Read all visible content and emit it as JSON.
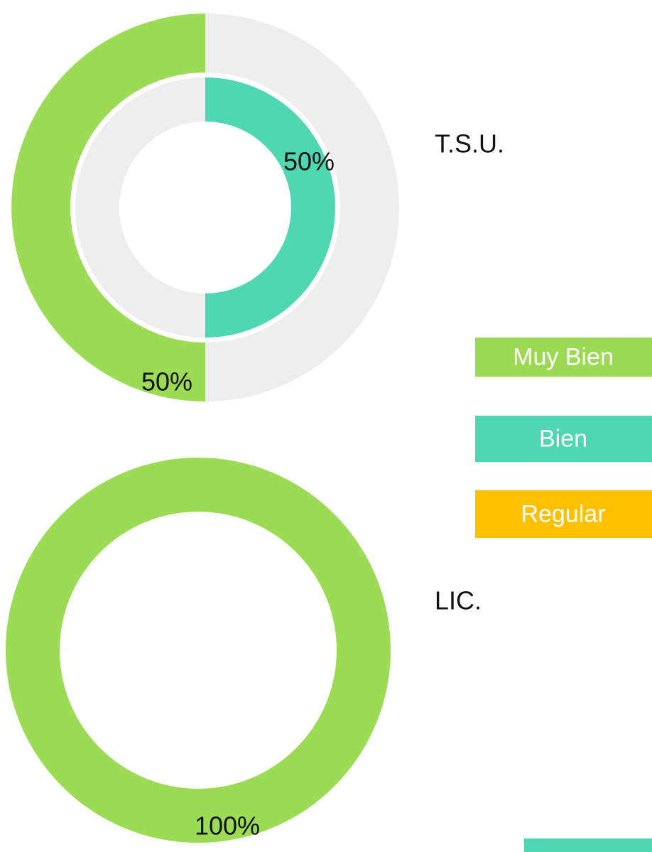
{
  "chart_data": [
    {
      "type": "donut",
      "label": "T.S.U.",
      "track_color": "#eeeeee",
      "series": [
        {
          "color": "#9cdc55",
          "values": [
            50
          ],
          "value_labels": [
            "50%"
          ]
        },
        {
          "color": "#4fd7b2",
          "values": [
            50
          ],
          "value_labels": [
            "50%"
          ]
        }
      ]
    },
    {
      "type": "donut",
      "label": "LIC.",
      "track_color": "#eeeeee",
      "series": [
        {
          "color": "#9cdc55",
          "values": [
            100
          ],
          "value_labels": [
            "100%"
          ]
        }
      ]
    }
  ],
  "legend": [
    {
      "name": "Muy Bien",
      "color": "#9cd955"
    },
    {
      "name": "Bien",
      "color": "#4fd6b4"
    },
    {
      "name": "Regular",
      "color": "#ffc000"
    }
  ]
}
